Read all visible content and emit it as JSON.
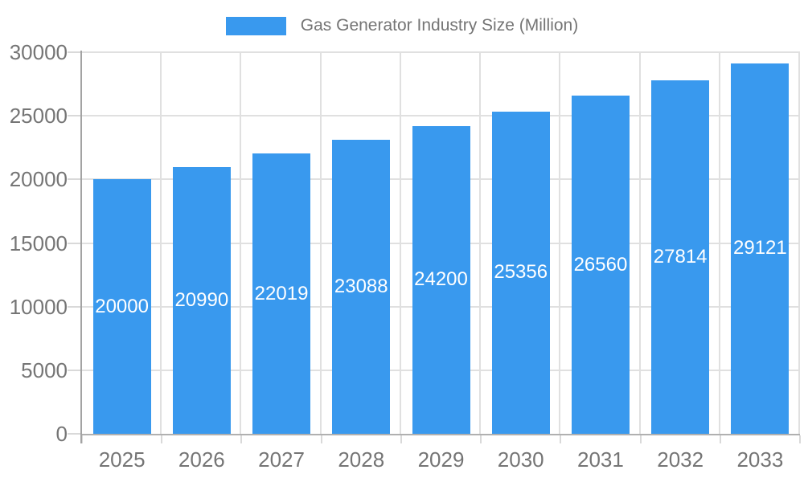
{
  "legend": {
    "label": "Gas Generator Industry Size (Million)"
  },
  "chart_data": {
    "type": "bar",
    "title": "Gas Generator Industry Size (Million)",
    "legend_position": "top",
    "categories": [
      "2025",
      "2026",
      "2027",
      "2028",
      "2029",
      "2030",
      "2031",
      "2032",
      "2033"
    ],
    "series": [
      {
        "name": "Gas Generator Industry Size (Million)",
        "values": [
          20000,
          20990,
          22019,
          23088,
          24200,
          25356,
          26560,
          27814,
          29121
        ]
      }
    ],
    "value_labels_position": "inside-center",
    "xlabel": "",
    "ylabel": "",
    "ylim": [
      0,
      30000
    ],
    "y_ticks": [
      0,
      5000,
      10000,
      15000,
      20000,
      25000,
      30000
    ],
    "grid": true,
    "colors": {
      "bar": "#3999EE",
      "grid": "#E0E0E0",
      "tick": "#D9D9D9",
      "axis_y": "#A3A3A3",
      "axis_x": "#B0B0B0",
      "tick_text": "#757575",
      "legend_text": "#757575",
      "value_text": "#FFFFFF",
      "background": "#FFFFFF"
    }
  }
}
